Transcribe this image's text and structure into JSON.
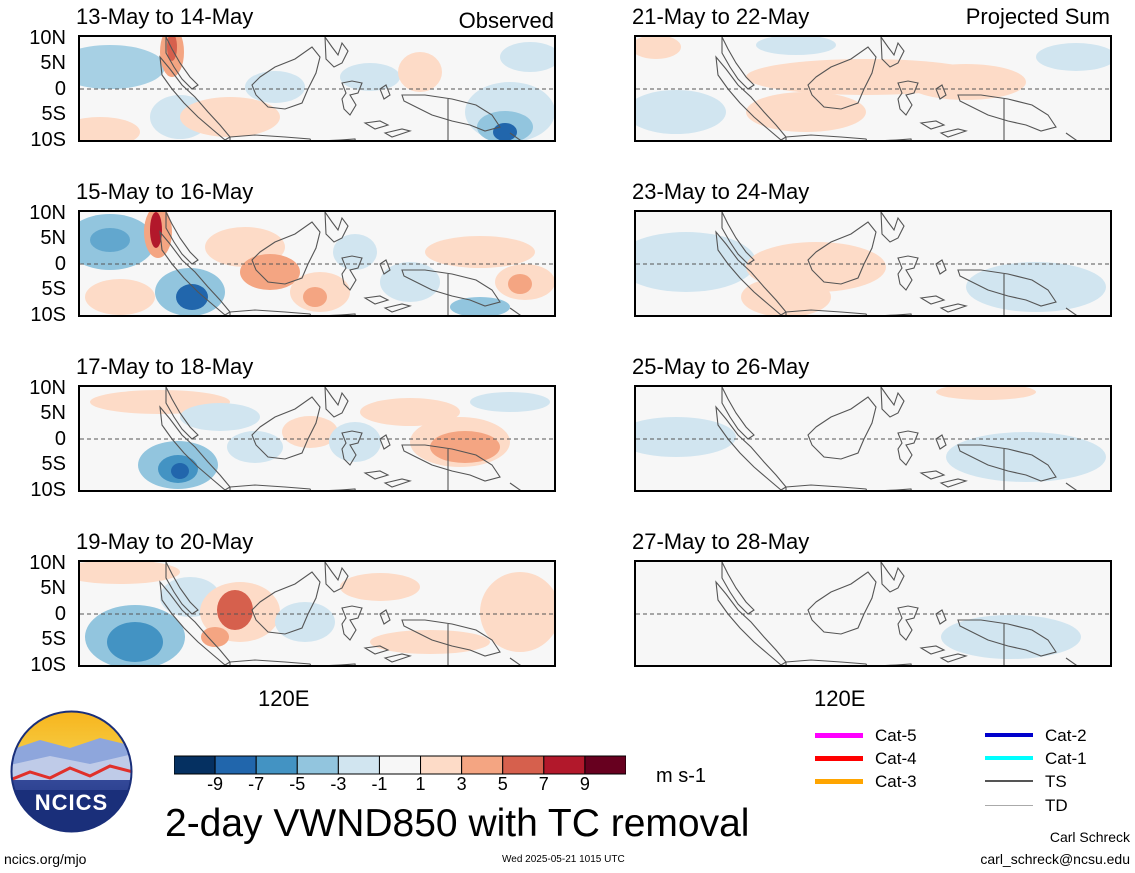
{
  "columns": [
    {
      "corner_label": "Observed",
      "panels": [
        {
          "title": "13-May to 14-May"
        },
        {
          "title": "15-May to 16-May"
        },
        {
          "title": "17-May to 18-May"
        },
        {
          "title": "19-May to 20-May"
        }
      ]
    },
    {
      "corner_label": "Projected Sum",
      "panels": [
        {
          "title": "21-May to 22-May"
        },
        {
          "title": "23-May to 24-May"
        },
        {
          "title": "25-May to 26-May"
        },
        {
          "title": "27-May to 28-May"
        }
      ]
    }
  ],
  "lat_labels": [
    "10N",
    "5N",
    "0",
    "5S",
    "10S"
  ],
  "lon_label": "120E",
  "colorbar": {
    "ticks": [
      "-9",
      "-7",
      "-5",
      "-3",
      "-1",
      "1",
      "3",
      "5",
      "7",
      "9"
    ],
    "colors": [
      "#053061",
      "#2166ac",
      "#4393c3",
      "#92c5de",
      "#d1e5f0",
      "#f7f7f7",
      "#fddbc7",
      "#f4a582",
      "#d6604d",
      "#b2182b",
      "#67001f"
    ],
    "units": "m s-1"
  },
  "legend": [
    {
      "label": "Cat-5",
      "color": "#ff00ff",
      "width": 5
    },
    {
      "label": "Cat-4",
      "color": "#ff0000",
      "width": 5
    },
    {
      "label": "Cat-3",
      "color": "#ffa500",
      "width": 5
    },
    {
      "label": "Cat-2",
      "color": "#0000cc",
      "width": 4
    },
    {
      "label": "Cat-1",
      "color": "#00ffff",
      "width": 4
    },
    {
      "label": "TS",
      "color": "#555555",
      "width": 2
    },
    {
      "label": "TD",
      "color": "#aaaaaa",
      "width": 1
    }
  ],
  "logo_text": "NCICS",
  "main_title": "2-day VWND850 with TC removal",
  "footer": {
    "url": "ncics.org/mjo",
    "timestamp": "Wed 2025-05-21 1015 UTC",
    "author": "Carl Schreck",
    "email": "carl_schreck@ncsu.edu"
  }
}
